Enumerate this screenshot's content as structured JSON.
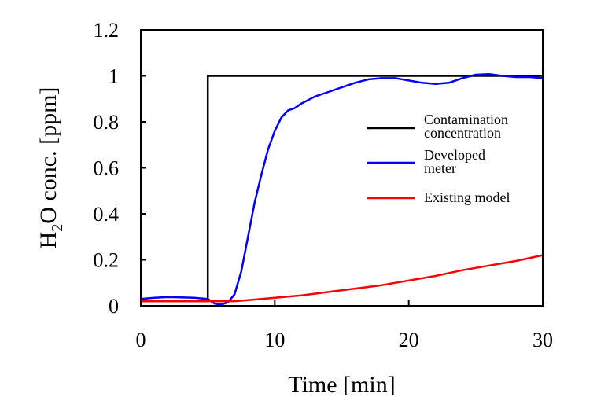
{
  "chart_data": {
    "type": "line",
    "title": "",
    "xlabel": "Time [min]",
    "ylabel": {
      "prefix": "H",
      "subscript": "2",
      "suffix": "O conc. [ppm]"
    },
    "xlim": [
      0,
      30
    ],
    "ylim": [
      0,
      1.2
    ],
    "xticks": [
      0,
      10,
      20,
      30
    ],
    "xtick_labels": [
      "0",
      "10",
      "20",
      "30"
    ],
    "yticks": [
      0,
      0.2,
      0.4,
      0.6,
      0.8,
      1,
      1.2
    ],
    "ytick_labels": [
      "0",
      "0.2",
      "0.4",
      "0.6",
      "0.8",
      "1",
      "1.2"
    ],
    "grid": false,
    "legend_position": "right",
    "series": [
      {
        "name": "Contamination concentration",
        "legend_lines": [
          "Contamination",
          "concentration"
        ],
        "color": "#000000",
        "x": [
          0,
          5,
          5,
          30
        ],
        "y": [
          0.02,
          0.02,
          1.0,
          1.0
        ]
      },
      {
        "name": "Developed meter",
        "legend_lines": [
          "Developed",
          "meter"
        ],
        "color": "#0000ff",
        "x": [
          0,
          1,
          2,
          3,
          4,
          5,
          5.5,
          6,
          6.5,
          7,
          7.5,
          8,
          8.5,
          9,
          9.5,
          10,
          10.5,
          11,
          11.5,
          12,
          13,
          14,
          15,
          16,
          17,
          18,
          19,
          20,
          21,
          22,
          23,
          24,
          25,
          26,
          27,
          28,
          29,
          30
        ],
        "y": [
          0.03,
          0.035,
          0.038,
          0.037,
          0.035,
          0.03,
          0.01,
          0.005,
          0.015,
          0.05,
          0.15,
          0.3,
          0.45,
          0.57,
          0.68,
          0.76,
          0.82,
          0.85,
          0.86,
          0.88,
          0.91,
          0.93,
          0.95,
          0.97,
          0.985,
          0.99,
          0.99,
          0.98,
          0.97,
          0.965,
          0.97,
          0.99,
          1.005,
          1.008,
          1.0,
          0.995,
          0.995,
          0.99
        ]
      },
      {
        "name": "Existing model",
        "legend_lines": [
          "Existing model"
        ],
        "color": "#ff0000",
        "x": [
          0,
          2,
          4,
          6,
          7,
          8,
          9,
          10,
          12,
          14,
          16,
          18,
          20,
          22,
          24,
          26,
          28,
          30
        ],
        "y": [
          0.02,
          0.02,
          0.02,
          0.02,
          0.02,
          0.025,
          0.03,
          0.035,
          0.045,
          0.06,
          0.075,
          0.09,
          0.11,
          0.13,
          0.155,
          0.175,
          0.195,
          0.22
        ]
      }
    ]
  }
}
